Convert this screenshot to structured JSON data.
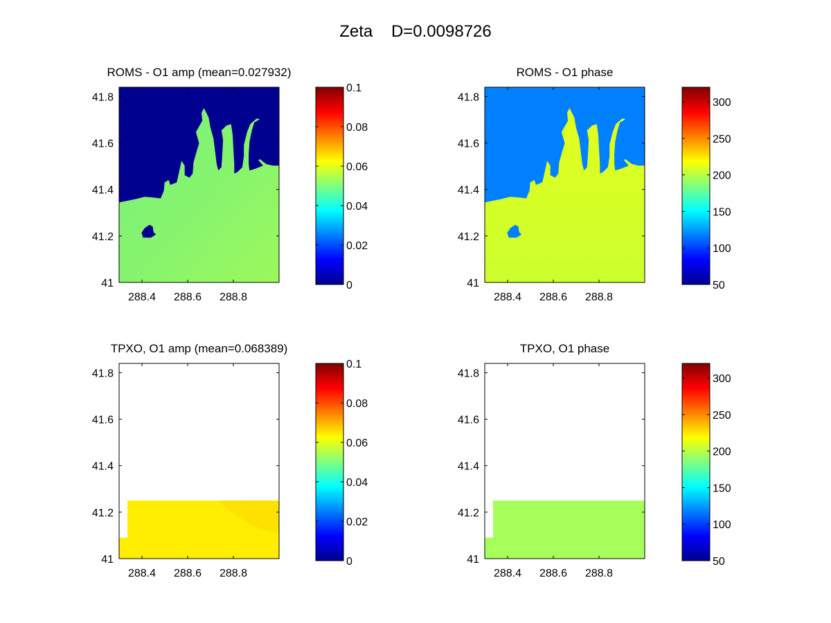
{
  "figure": {
    "suptitle": "Zeta    D=0.0098726",
    "colors": {
      "ocean": "#7cfc7c",
      "land_amp": "#00008f",
      "land_phase": "#0080ff",
      "tpxo_amp": "#ffee00",
      "tpxo_phase": "#a6ff5a",
      "frame": "#000000"
    }
  },
  "chart_data": [
    {
      "type": "heatmap",
      "title": "ROMS - O1 amp (mean=0.027932)",
      "field": "O1 amplitude",
      "x_ticks": [
        "288.4",
        "288.6",
        "288.8"
      ],
      "y_ticks": [
        "41",
        "41.2",
        "41.4",
        "41.6",
        "41.8"
      ],
      "xlim": [
        288.3,
        289.0
      ],
      "ylim": [
        41.0,
        41.84
      ],
      "colorbar": {
        "min": 0,
        "max": 0.1,
        "ticks": [
          "0",
          "0.02",
          "0.04",
          "0.06",
          "0.08",
          "0.1"
        ]
      },
      "values": {
        "land_mask": 0,
        "ocean_typical": 0.055
      },
      "mean": 0.027932
    },
    {
      "type": "heatmap",
      "title": "ROMS - O1 phase",
      "field": "O1 phase",
      "x_ticks": [
        "288.4",
        "288.6",
        "288.8"
      ],
      "y_ticks": [
        "41",
        "41.2",
        "41.4",
        "41.6",
        "41.8"
      ],
      "xlim": [
        288.3,
        289.0
      ],
      "ylim": [
        41.0,
        41.84
      ],
      "colorbar": {
        "min": 50,
        "max": 320,
        "ticks": [
          "50",
          "100",
          "150",
          "200",
          "250",
          "300"
        ]
      },
      "values": {
        "land_mask": 100,
        "ocean_typical": 225
      }
    },
    {
      "type": "heatmap",
      "title": "TPXO, O1 amp (mean=0.068389)",
      "field": "O1 amplitude",
      "x_ticks": [
        "288.4",
        "288.6",
        "288.8"
      ],
      "y_ticks": [
        "41",
        "41.2",
        "41.4",
        "41.6",
        "41.8"
      ],
      "xlim": [
        288.3,
        289.0
      ],
      "ylim": [
        41.0,
        41.84
      ],
      "colorbar": {
        "min": 0,
        "max": 0.1,
        "ticks": [
          "0",
          "0.02",
          "0.04",
          "0.06",
          "0.08",
          "0.1"
        ]
      },
      "values": {
        "data_region_top_lat": 41.25,
        "typical": 0.066
      },
      "mean": 0.068389
    },
    {
      "type": "heatmap",
      "title": "TPXO, O1 phase",
      "field": "O1 phase",
      "x_ticks": [
        "288.4",
        "288.6",
        "288.8"
      ],
      "y_ticks": [
        "41",
        "41.2",
        "41.4",
        "41.6",
        "41.8"
      ],
      "xlim": [
        288.3,
        289.0
      ],
      "ylim": [
        41.0,
        41.84
      ],
      "colorbar": {
        "min": 50,
        "max": 320,
        "ticks": [
          "50",
          "100",
          "150",
          "200",
          "250",
          "300"
        ]
      },
      "values": {
        "data_region_top_lat": 41.25,
        "typical": 205
      }
    }
  ]
}
